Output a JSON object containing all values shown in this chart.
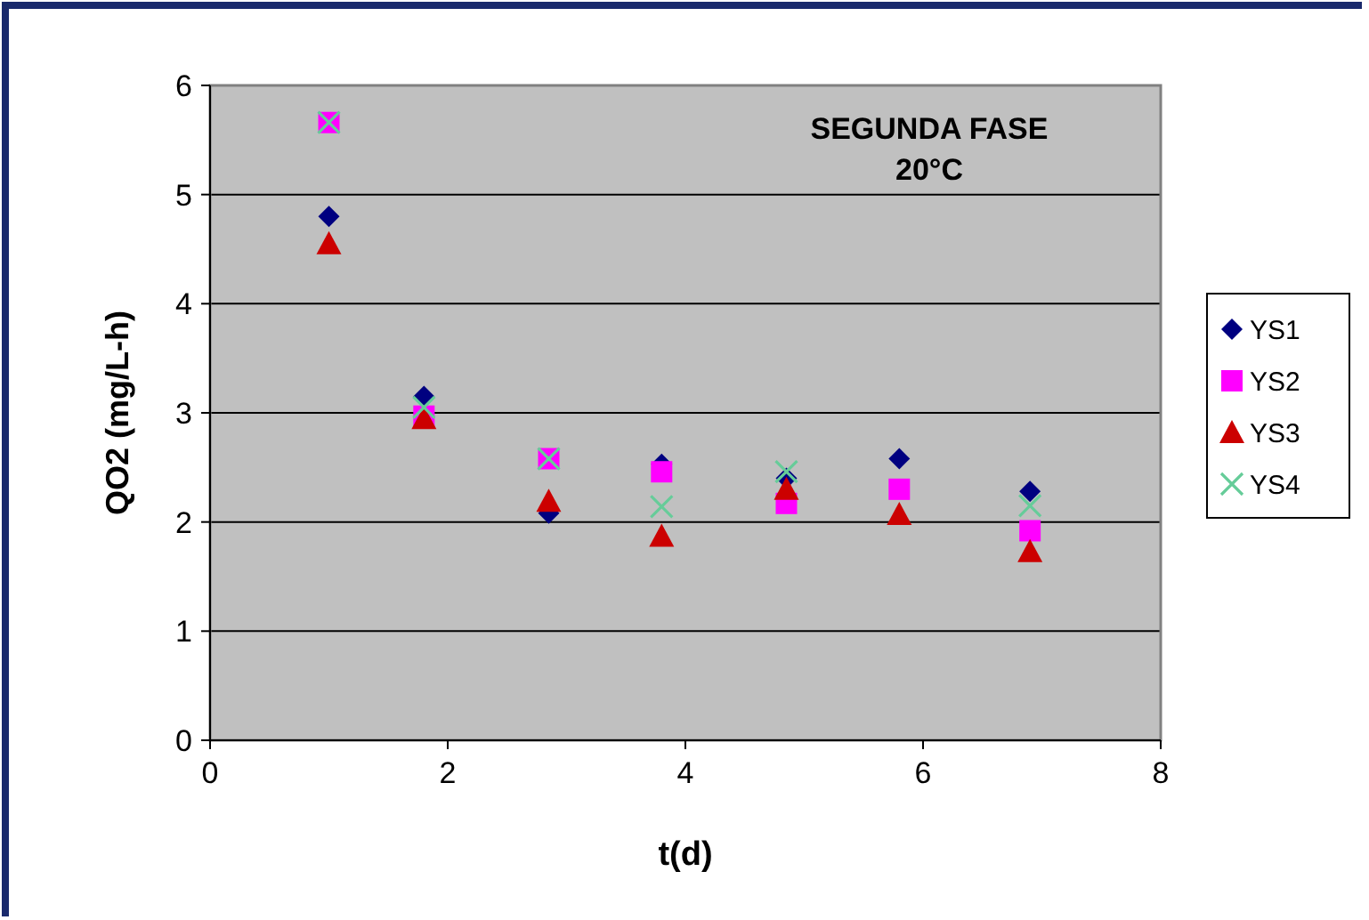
{
  "chart_data": {
    "type": "scatter",
    "title": "SEGUNDA FASE",
    "subtitle": "20°C",
    "xlabel": "t(d)",
    "ylabel": "QO2 (mg/L-h)",
    "x": [
      1,
      1.8,
      2.85,
      3.8,
      4.85,
      5.8,
      6.9
    ],
    "series": [
      {
        "name": "YS1",
        "color": "#000080",
        "marker": "diamond",
        "values": [
          4.8,
          3.15,
          2.08,
          2.53,
          2.4,
          2.58,
          2.28
        ]
      },
      {
        "name": "YS2",
        "color": "#ff00ff",
        "marker": "square",
        "values": [
          5.66,
          2.97,
          2.58,
          2.46,
          2.17,
          2.3,
          1.92
        ]
      },
      {
        "name": "YS3",
        "color": "#cc0000",
        "marker": "triangle",
        "values": [
          4.55,
          2.95,
          2.19,
          1.87,
          2.3,
          2.07,
          1.73
        ]
      },
      {
        "name": "YS4",
        "color": "#66cc99",
        "marker": "cross",
        "values": [
          5.66,
          3.05,
          2.58,
          2.14,
          2.46,
          null,
          2.15
        ]
      }
    ],
    "xlim": [
      0,
      8
    ],
    "xticks": [
      0,
      2,
      4,
      6,
      8
    ],
    "ylim": [
      0,
      6
    ],
    "yticks": [
      0,
      1,
      2,
      3,
      4,
      5,
      6
    ],
    "grid": "y",
    "legend": "right"
  }
}
